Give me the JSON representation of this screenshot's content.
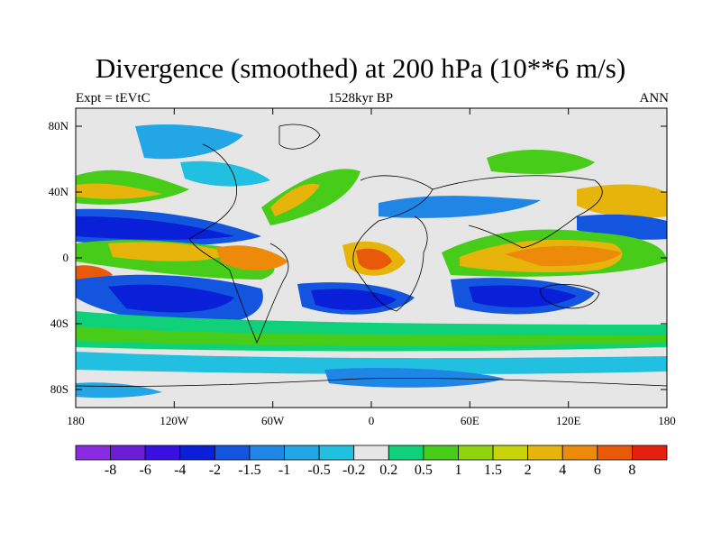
{
  "title": "Divergence (smoothed) at 200 hPa (10**6 m/s)",
  "subtitle_left": "Expt = tEVtC",
  "subtitle_center": "1528kyr BP",
  "subtitle_right": "ANN",
  "lat_ticks": [
    "80N",
    "40N",
    "0",
    "40S",
    "80S"
  ],
  "lon_ticks": [
    "180",
    "120W",
    "60W",
    "0",
    "60E",
    "120E",
    "180"
  ],
  "colorbar": {
    "labels": [
      "-8",
      "-6",
      "-4",
      "-2",
      "-1.5",
      "-1",
      "-0.5",
      "-0.2",
      "0.2",
      "0.5",
      "1",
      "1.5",
      "2",
      "4",
      "6",
      "8"
    ],
    "colors": [
      "#8a2be2",
      "#6a1fd6",
      "#3a10e0",
      "#0a1fd8",
      "#1455e0",
      "#1f86e6",
      "#22a6e6",
      "#22c0e0",
      "#e6e6e6",
      "#10d07a",
      "#48cc1a",
      "#8ed40c",
      "#c8d40a",
      "#e6b40a",
      "#ee8a0a",
      "#e85a0a",
      "#e62010"
    ]
  },
  "map_colors": {
    "ocean_neutral": "#e6e6e6",
    "strong_neg": "#0a1fd8",
    "mid_neg": "#1455e0",
    "weak_neg": "#1f86e6",
    "light_neg": "#22c0e0",
    "light_pos": "#10d07a",
    "mid_pos": "#48cc1a",
    "yellow_pos": "#c8d40a",
    "orange_pos": "#e6b40a",
    "strong_pos": "#ee8a0a",
    "red_pos": "#e85a0a"
  }
}
